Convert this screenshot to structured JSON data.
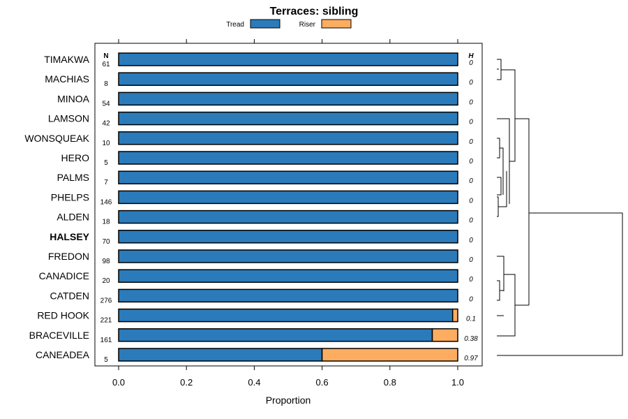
{
  "chart_data": {
    "type": "bar",
    "orientation": "horizontal",
    "stacked": true,
    "title": "Terraces: sibling",
    "xlabel": "Proportion",
    "xlim": [
      0,
      1
    ],
    "xticks": [
      "0.0",
      "0.2",
      "0.4",
      "0.6",
      "0.8",
      "1.0"
    ],
    "xtick_values": [
      0,
      0.2,
      0.4,
      0.6,
      0.8,
      1.0
    ],
    "n_header": "N",
    "h_header": "H",
    "legend": [
      {
        "name": "Tread",
        "color": "#2b7bba"
      },
      {
        "name": "Riser",
        "color": "#fdad60"
      }
    ],
    "categories": [
      "TIMAKWA",
      "MACHIAS",
      "MINOA",
      "LAMSON",
      "WONSQUEAK",
      "HERO",
      "PALMS",
      "PHELPS",
      "ALDEN",
      "HALSEY",
      "FREDON",
      "CANADICE",
      "CATDEN",
      "RED HOOK",
      "BRACEVILLE",
      "CANEADEA"
    ],
    "highlighted": "HALSEY",
    "n": [
      "61",
      "8",
      "54",
      "42",
      "10",
      "5",
      "7",
      "146",
      "18",
      "70",
      "98",
      "20",
      "276",
      "221",
      "161",
      "5"
    ],
    "h": [
      "0",
      "0",
      "0",
      "0",
      "0",
      "0",
      "0",
      "0",
      "0",
      "0",
      "0",
      "0",
      "0",
      "0.1",
      "0.38",
      "0.97"
    ],
    "series": [
      {
        "name": "Tread",
        "values": [
          1,
          1,
          1,
          1,
          1,
          1,
          1,
          1,
          1,
          1,
          1,
          1,
          1,
          0.985,
          0.925,
          0.6
        ]
      },
      {
        "name": "Riser",
        "values": [
          0,
          0,
          0,
          0,
          0,
          0,
          0,
          0,
          0,
          0,
          0,
          0,
          0,
          0.015,
          0.075,
          0.4
        ]
      }
    ],
    "dendrogram": "hierarchical clustering of the 16 rows"
  }
}
